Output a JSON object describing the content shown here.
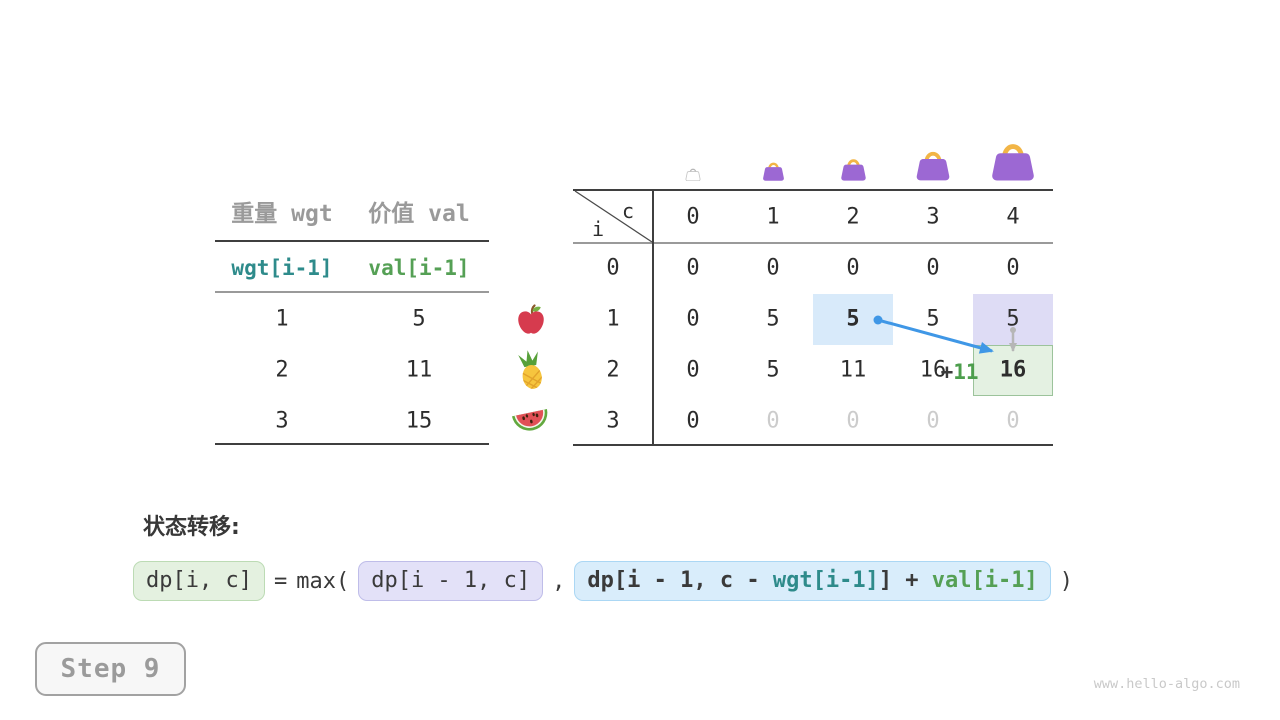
{
  "colors": {
    "teal": "#2e8b8b",
    "green": "#55a055",
    "arrow_blue": "#3f97e6",
    "arrow_gray": "#b6b6b6",
    "bag_purple": "#9c68d3",
    "bag_handle": "#f2b546",
    "highlight_blue": "#d8eafa",
    "highlight_lavender": "#dedcf5",
    "highlight_green": "#e4f1e2",
    "highlight_green_border": "#9cc39b",
    "muted_text": "#cccccc"
  },
  "items_table": {
    "headers": [
      "重量 wgt",
      "价值 val"
    ],
    "sub_headers": [
      "wgt[i-1]",
      "val[i-1]"
    ],
    "rows": [
      {
        "wgt": "1",
        "val": "5",
        "icon": "apple-icon"
      },
      {
        "wgt": "2",
        "val": "11",
        "icon": "pineapple-icon"
      },
      {
        "wgt": "3",
        "val": "15",
        "icon": "watermelon-icon"
      }
    ]
  },
  "dp_table": {
    "row_axis_label": "i",
    "col_axis_label": "c",
    "col_headers": [
      "0",
      "1",
      "2",
      "3",
      "4"
    ],
    "row_headers": [
      "0",
      "1",
      "2",
      "3"
    ],
    "cells": [
      [
        "0",
        "0",
        "0",
        "0",
        "0"
      ],
      [
        "0",
        "5",
        "5",
        "5",
        "5"
      ],
      [
        "0",
        "5",
        "11",
        "16",
        "16"
      ],
      [
        "0",
        "0",
        "0",
        "0",
        "0"
      ]
    ],
    "muted_cells": [
      [
        3,
        1
      ],
      [
        3,
        2
      ],
      [
        3,
        3
      ],
      [
        3,
        4
      ]
    ],
    "bold_cells": [
      [
        1,
        2
      ],
      [
        2,
        4
      ]
    ],
    "highlight_cells": [
      {
        "row": 1,
        "col": 2,
        "style": "blue"
      },
      {
        "row": 1,
        "col": 4,
        "style": "lavender"
      },
      {
        "row": 2,
        "col": 4,
        "style": "green"
      }
    ],
    "bag_icons": [
      "bag-outline-icon",
      "bag-small-icon",
      "bag-medium-icon",
      "bag-large-icon",
      "bag-xlarge-icon"
    ],
    "annotation": {
      "plus": "+",
      "value": "11"
    }
  },
  "formula": {
    "heading": "状态转移:",
    "lhs": "dp[i, c]",
    "equals": "=",
    "max_open": "max(",
    "arg1": "dp[i - 1, c]",
    "comma": ",",
    "arg2_prefix": "dp[i - 1, c - ",
    "arg2_wgt": "wgt[i-1]",
    "arg2_mid": "] + ",
    "arg2_val": "val[i-1]",
    "close_paren": ")"
  },
  "step_label": "Step 9",
  "watermark": "www.hello-algo.com"
}
